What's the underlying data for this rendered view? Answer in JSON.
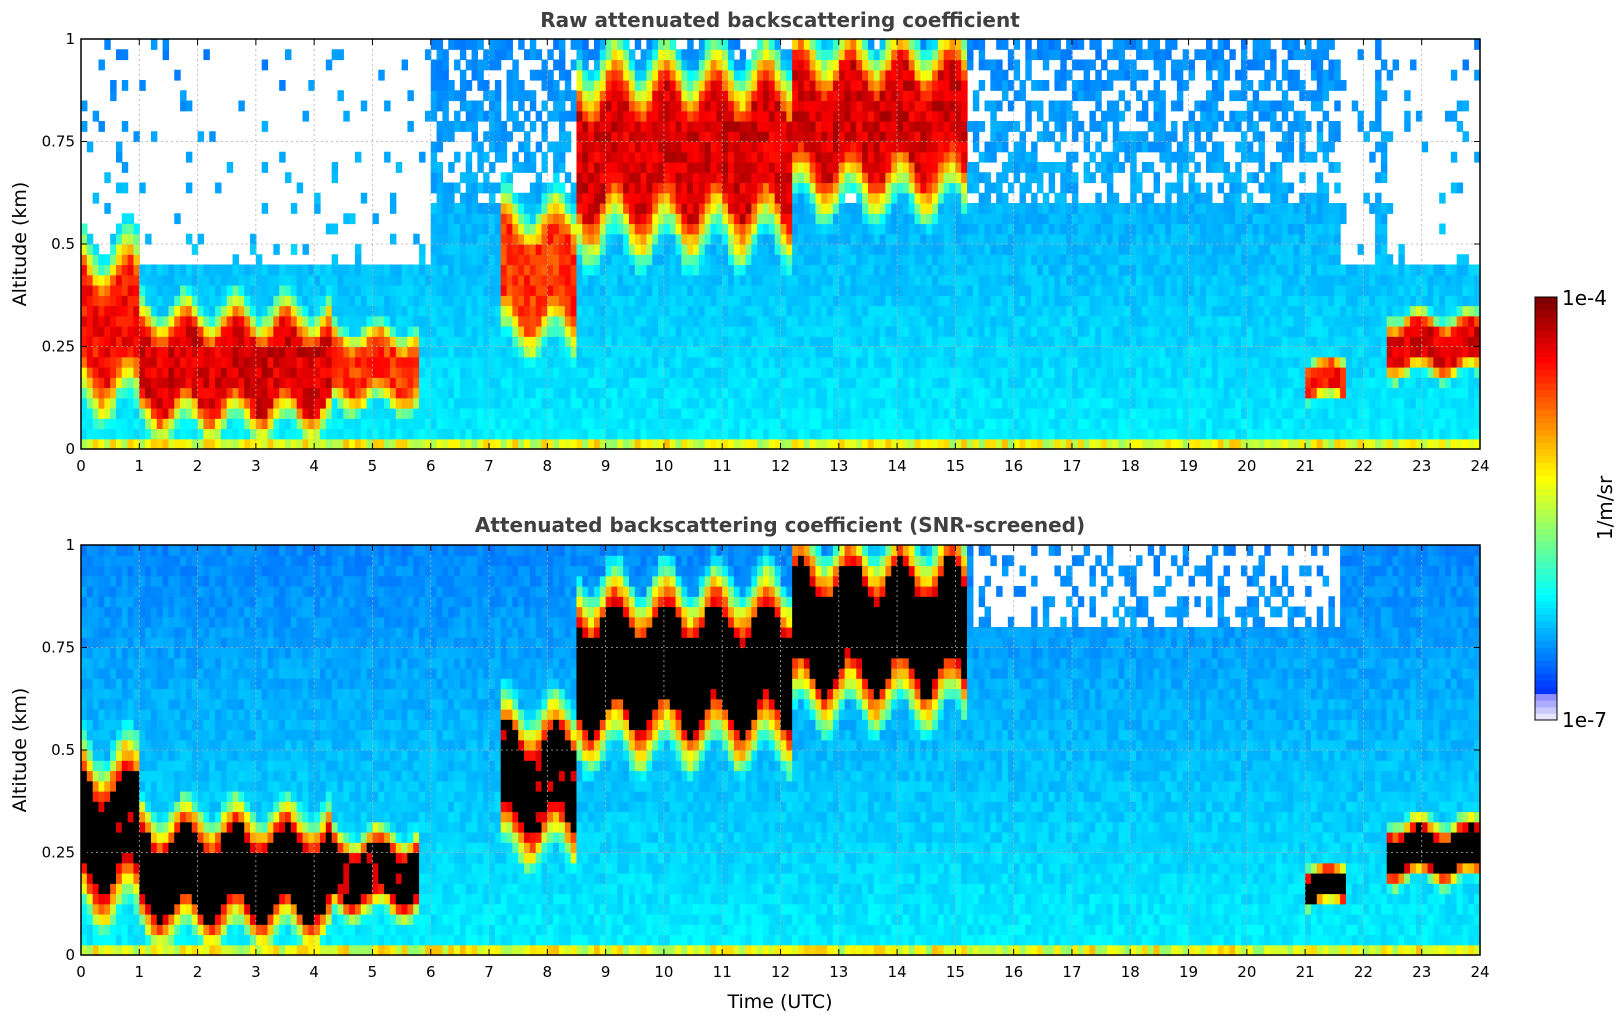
{
  "chart_data": [
    {
      "type": "heatmap",
      "title": "Raw attenuated backscattering coefficient",
      "ylabel": "Altitude (km)",
      "xlabel": "",
      "x_range": [
        0,
        24
      ],
      "y_range": [
        0,
        1
      ],
      "x_ticks": [
        "0",
        "1",
        "2",
        "3",
        "4",
        "5",
        "6",
        "7",
        "8",
        "9",
        "10",
        "11",
        "12",
        "13",
        "14",
        "15",
        "16",
        "17",
        "18",
        "19",
        "20",
        "21",
        "22",
        "23",
        "24"
      ],
      "y_ticks": [
        "0",
        "0.25",
        "0.5",
        "0.75",
        "1"
      ],
      "grid": true,
      "colorscale": "jet",
      "features": [
        {
          "t0": 0,
          "t1": 1,
          "z0": 0.1,
          "z1": 0.5,
          "level": 0.85
        },
        {
          "t0": 1,
          "t1": 4.3,
          "z0": 0.05,
          "z1": 0.35,
          "level": 0.9
        },
        {
          "t0": 4.3,
          "t1": 5.8,
          "z0": 0.1,
          "z1": 0.3,
          "level": 0.8
        },
        {
          "t0": 7.2,
          "t1": 8.5,
          "z0": 0.25,
          "z1": 0.6,
          "level": 0.8
        },
        {
          "t0": 8.5,
          "t1": 12.2,
          "z0": 0.5,
          "z1": 0.95,
          "level": 0.9
        },
        {
          "t0": 12.2,
          "t1": 15.2,
          "z0": 0.6,
          "z1": 1.0,
          "level": 0.9
        },
        {
          "t0": 21,
          "t1": 21.7,
          "z0": 0.12,
          "z1": 0.22,
          "level": 0.85
        },
        {
          "t0": 22.4,
          "t1": 24,
          "z0": 0.18,
          "z1": 0.33,
          "level": 0.9
        }
      ],
      "screened": false
    },
    {
      "type": "heatmap",
      "title": "Attenuated backscattering coefficient (SNR-screened)",
      "ylabel": "Altitude (km)",
      "xlabel": "Time (UTC)",
      "x_range": [
        0,
        24
      ],
      "y_range": [
        0,
        1
      ],
      "x_ticks": [
        "0",
        "1",
        "2",
        "3",
        "4",
        "5",
        "6",
        "7",
        "8",
        "9",
        "10",
        "11",
        "12",
        "13",
        "14",
        "15",
        "16",
        "17",
        "18",
        "19",
        "20",
        "21",
        "22",
        "23",
        "24"
      ],
      "y_ticks": [
        "0",
        "0.25",
        "0.5",
        "0.75",
        "1"
      ],
      "grid": true,
      "colorscale": "jet",
      "features": [
        {
          "t0": 0,
          "t1": 1,
          "z0": 0.1,
          "z1": 0.5,
          "level": 0.95
        },
        {
          "t0": 1,
          "t1": 4.3,
          "z0": 0.05,
          "z1": 0.35,
          "level": 0.98
        },
        {
          "t0": 4.3,
          "t1": 5.8,
          "z0": 0.1,
          "z1": 0.3,
          "level": 0.95
        },
        {
          "t0": 7.2,
          "t1": 8.5,
          "z0": 0.25,
          "z1": 0.6,
          "level": 0.95
        },
        {
          "t0": 8.5,
          "t1": 12.2,
          "z0": 0.5,
          "z1": 0.9,
          "level": 0.98
        },
        {
          "t0": 12.2,
          "t1": 15.2,
          "z0": 0.6,
          "z1": 1.0,
          "level": 0.98
        },
        {
          "t0": 21,
          "t1": 21.7,
          "z0": 0.12,
          "z1": 0.22,
          "level": 0.98
        },
        {
          "t0": 22.4,
          "t1": 24,
          "z0": 0.18,
          "z1": 0.33,
          "level": 0.98
        }
      ],
      "screened": true
    }
  ],
  "colorbar": {
    "label": "1/m/sr",
    "max_label": "1e-4",
    "min_label": "1e-7",
    "range": [
      1e-07,
      0.0001
    ],
    "scale": "log"
  }
}
